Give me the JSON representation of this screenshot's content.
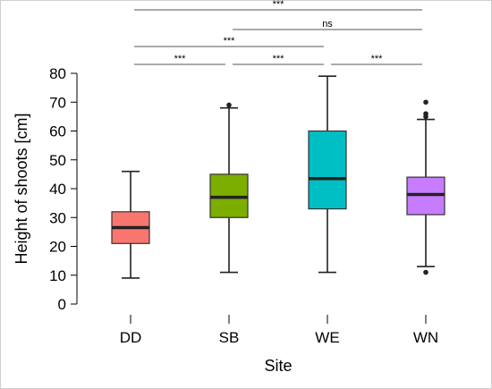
{
  "chart_data": {
    "type": "box",
    "xlabel": "Site",
    "ylabel": "Height of shoots [cm]",
    "ylim": [
      0,
      80
    ],
    "yticks": [
      "0",
      "10",
      "20",
      "30",
      "40",
      "50",
      "60",
      "70",
      "80"
    ],
    "yticks_values": [
      0,
      10,
      20,
      30,
      40,
      50,
      60,
      70,
      80
    ],
    "categories": [
      "DD",
      "SB",
      "WE",
      "WN"
    ],
    "boxes": [
      {
        "name": "DD",
        "whisker_low": 9,
        "q1": 21,
        "median": 26.5,
        "q3": 32,
        "whisker_high": 46,
        "outliers": [],
        "color": "#f8766d"
      },
      {
        "name": "SB",
        "whisker_low": 11,
        "q1": 30,
        "median": 37,
        "q3": 45,
        "whisker_high": 68,
        "outliers": [
          69
        ],
        "color": "#7cae00"
      },
      {
        "name": "WE",
        "whisker_low": 11,
        "q1": 33,
        "median": 43.5,
        "q3": 60,
        "whisker_high": 79,
        "outliers": [],
        "color": "#00bfc4"
      },
      {
        "name": "WN",
        "whisker_low": 13,
        "q1": 31,
        "median": 38,
        "q3": 44,
        "whisker_high": 64,
        "outliers": [
          11,
          65,
          66,
          70
        ],
        "color": "#c77cff"
      }
    ],
    "significance": [
      {
        "from": "DD",
        "to": "WN",
        "label": "***"
      },
      {
        "from": "SB",
        "to": "WN",
        "label": "ns"
      },
      {
        "from": "DD",
        "to": "WE",
        "label": "***"
      },
      {
        "from": "DD",
        "to": "SB",
        "label": "***"
      },
      {
        "from": "SB",
        "to": "WE",
        "label": "***"
      },
      {
        "from": "WE",
        "to": "WN",
        "label": "***"
      }
    ]
  }
}
